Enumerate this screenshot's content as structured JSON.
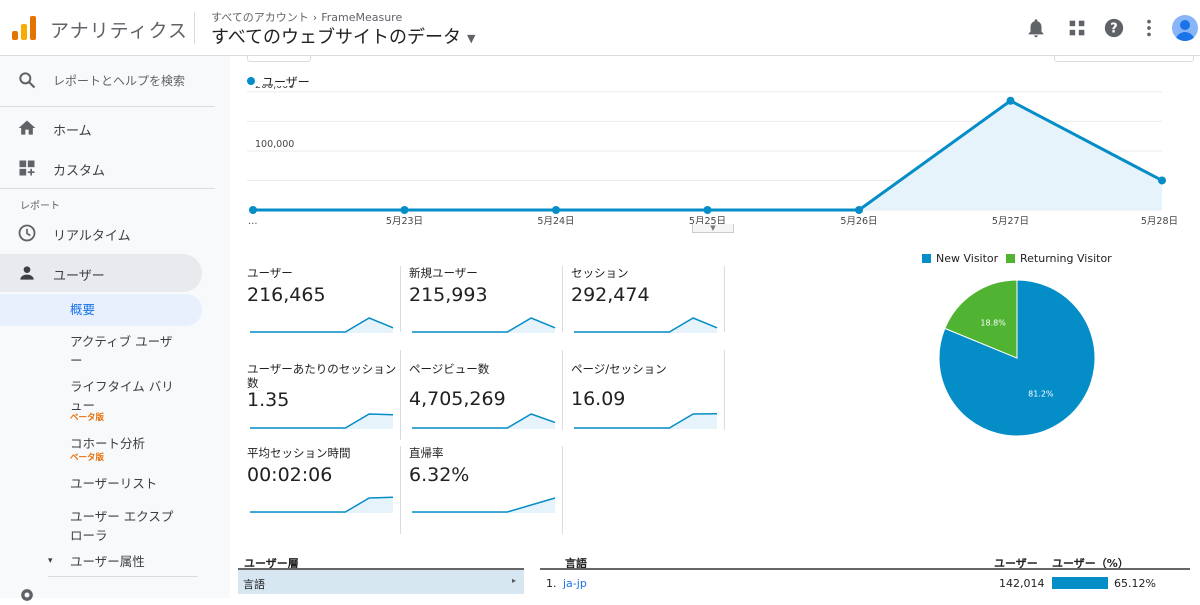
{
  "header": {
    "app_title": "アナリティクス",
    "breadcrumb": [
      "すべてのアカウント",
      "FrameMeasure"
    ],
    "breadcrumb_sep": "›",
    "property": "すべてのウェブサイトのデータ",
    "icons": [
      "bell-icon",
      "apps-grid-icon",
      "help-icon",
      "more-vert-icon",
      "account-avatar"
    ]
  },
  "sidebar": {
    "search": "レポートとヘルプを検索",
    "home": "ホーム",
    "custom": "カスタム",
    "section": "レポート",
    "realtime": "リアルタイム",
    "audience": "ユーザー",
    "sub_items": [
      {
        "label": "概要",
        "selected": true
      },
      {
        "label": "アクティブ ユーザー"
      },
      {
        "label": "ライフタイム バリュー",
        "badge": "ベータ版"
      },
      {
        "label": "コホート分析",
        "badge": "ベータ版"
      },
      {
        "label": "ユーザーリスト"
      },
      {
        "label": "ユーザー エクスプローラ"
      },
      {
        "label": "ユーザー属性",
        "expander": "▾"
      }
    ],
    "colors": {
      "active_bg": "#e8eaed",
      "selected_bg": "#e8f0fe",
      "selected_text": "#1a73e8",
      "beta": "#e8710a"
    }
  },
  "chart_data": [
    {
      "type": "area",
      "legend": [
        "ユーザー"
      ],
      "x": [
        "…",
        "5月23日",
        "5月24日",
        "5月25日",
        "5月26日",
        "5月27日",
        "5月28日"
      ],
      "series": [
        {
          "name": "ユーザー",
          "values": [
            0,
            0,
            0,
            0,
            0,
            185000,
            50000
          ],
          "color": "#058dc7"
        }
      ],
      "yticks": [
        "100,000",
        "200,000"
      ],
      "ylim": [
        0,
        210000
      ],
      "grid": true
    },
    {
      "type": "pie",
      "legend": [
        "New Visitor",
        "Returning Visitor"
      ],
      "slices": [
        {
          "name": "New Visitor",
          "value": 81.2,
          "label": "81.2%",
          "color": "#058dc7"
        },
        {
          "name": "Returning Visitor",
          "value": 18.8,
          "label": "18.8%",
          "color": "#50b432"
        }
      ]
    }
  ],
  "metrics": [
    {
      "label": "ユーザー",
      "value": "216,465",
      "spark": [
        0,
        0,
        0,
        0,
        0,
        1,
        0.3
      ]
    },
    {
      "label": "新規ユーザー",
      "value": "215,993",
      "spark": [
        0,
        0,
        0,
        0,
        0,
        1,
        0.3
      ]
    },
    {
      "label": "セッション",
      "value": "292,474",
      "spark": [
        0,
        0,
        0,
        0,
        0,
        1,
        0.3
      ]
    },
    {
      "label": "ユーザーあたりのセッション数",
      "value": "1.35",
      "spark": [
        0,
        0,
        0,
        0,
        0,
        1,
        0.95
      ]
    },
    {
      "label": "ページビュー数",
      "value": "4,705,269",
      "spark": [
        0,
        0,
        0,
        0,
        0,
        1,
        0.4
      ]
    },
    {
      "label": "ページ/セッション",
      "value": "16.09",
      "spark": [
        0,
        0,
        0,
        0,
        0,
        1,
        1.02
      ]
    },
    {
      "label": "平均セッション時間",
      "value": "00:02:06",
      "spark": [
        0,
        0,
        0,
        0,
        0,
        1,
        1.05
      ]
    },
    {
      "label": "直帰率",
      "value": "6.32%",
      "spark": [
        0,
        0,
        0,
        0,
        0,
        0.5,
        1
      ]
    }
  ],
  "table": {
    "dim_header": "ユーザー層",
    "dim_selected": "言語",
    "dim_arrow": "▸",
    "col_dim": "言語",
    "col_users": "ユーザー",
    "col_pct": "ユーザー（%）",
    "rows": [
      {
        "rank": "1.",
        "name": "ja-jp",
        "users": "142,014",
        "pct": "65.12%",
        "pct_value": 65.12
      }
    ]
  }
}
